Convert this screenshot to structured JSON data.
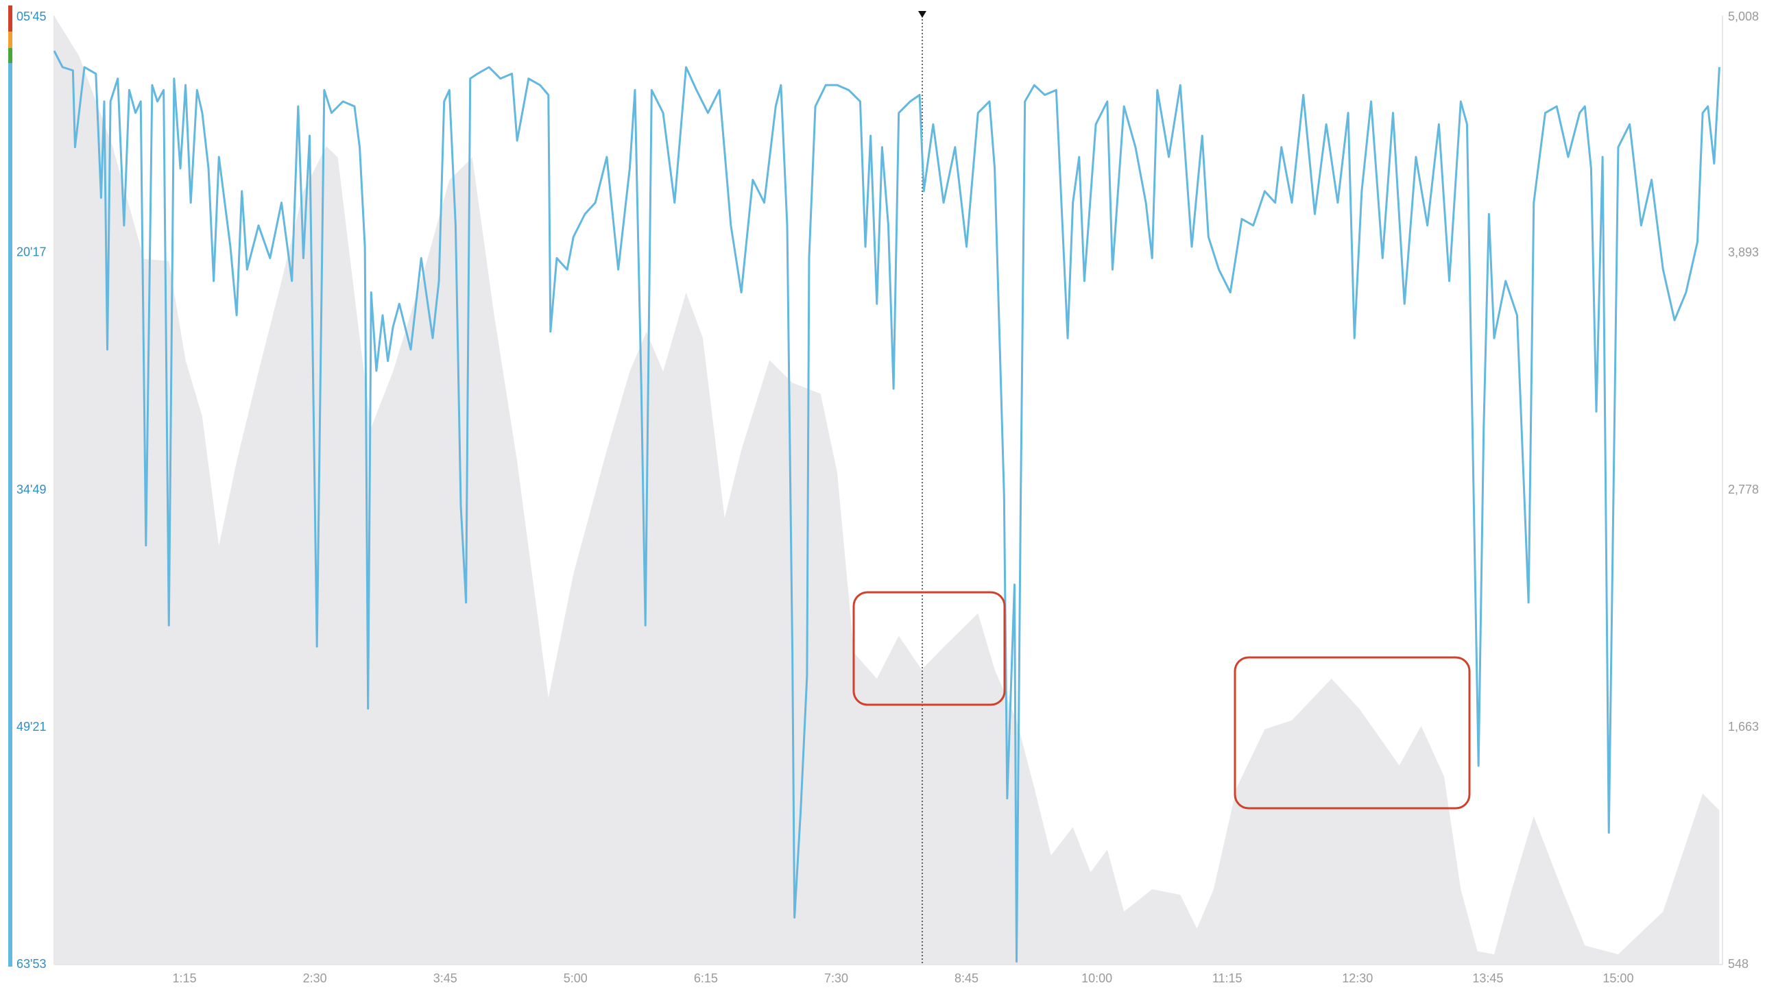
{
  "chart_data": {
    "type": "line",
    "xlim": [
      0,
      16
    ],
    "xticks": [
      {
        "value": 1.25,
        "label": "1:15"
      },
      {
        "value": 2.5,
        "label": "2:30"
      },
      {
        "value": 3.75,
        "label": "3:45"
      },
      {
        "value": 5,
        "label": "5:00"
      },
      {
        "value": 6.25,
        "label": "6:15"
      },
      {
        "value": 7.5,
        "label": "7:30"
      },
      {
        "value": 8.75,
        "label": "8:45"
      },
      {
        "value": 10,
        "label": "10:00"
      },
      {
        "value": 11.25,
        "label": "11:15"
      },
      {
        "value": 12.5,
        "label": "12:30"
      },
      {
        "value": 13.75,
        "label": "13:45"
      },
      {
        "value": 15,
        "label": "15:00"
      }
    ],
    "ylim": [
      63.883,
      5.75
    ],
    "yticks": [
      {
        "value": 5.75,
        "label": "05'45"
      },
      {
        "value": 20.283,
        "label": "20'17"
      },
      {
        "value": 34.817,
        "label": "34'49"
      },
      {
        "value": 49.35,
        "label": "49'21"
      },
      {
        "value": 63.883,
        "label": "63'53"
      }
    ],
    "y2lim": [
      548,
      5008
    ],
    "y2ticks": [
      {
        "value": 5008,
        "label": "5,008"
      },
      {
        "value": 3893,
        "label": "3,893"
      },
      {
        "value": 2778,
        "label": "2,778"
      },
      {
        "value": 1663,
        "label": "1,663"
      },
      548
    ],
    "grid": true,
    "series": [
      {
        "type": "area",
        "axis": "y2",
        "color": "#e9e9eb",
        "x": [
          0,
          0.24,
          0.56,
          0.86,
          1.1,
          1.26,
          1.42,
          1.58,
          1.75,
          1.96,
          2.18,
          2.39,
          2.61,
          2.72,
          2.93,
          3.04,
          3.25,
          3.58,
          3.79,
          4.01,
          4.22,
          4.44,
          4.74,
          4.98,
          5.3,
          5.52,
          5.68,
          5.84,
          6.06,
          6.22,
          6.43,
          6.59,
          6.86,
          7.08,
          7.35,
          7.51,
          7.67,
          7.89,
          8.1,
          8.32,
          8.53,
          8.86,
          9.02,
          9.23,
          9.4,
          9.56,
          9.77,
          9.94,
          10.1,
          10.26,
          10.53,
          10.8,
          10.96,
          11.12,
          11.34,
          11.61,
          11.87,
          12.25,
          12.52,
          12.9,
          13.11,
          13.33,
          13.49,
          13.65,
          13.81,
          13.98,
          14.19,
          14.46,
          14.68,
          15.0,
          15.43,
          15.81,
          15.97
        ],
        "values": [
          5008,
          4818,
          4395,
          3865,
          3855,
          3389,
          3124,
          2516,
          2913,
          3336,
          3760,
          4183,
          4395,
          4342,
          3495,
          3072,
          3336,
          3865,
          4236,
          4342,
          3601,
          2913,
          1802,
          2384,
          2966,
          3336,
          3522,
          3336,
          3707,
          3495,
          2648,
          2966,
          3389,
          3283,
          3231,
          2860,
          2014,
          1892,
          2093,
          1934,
          2040,
          2199,
          1934,
          1696,
          1379,
          1061,
          1194,
          982,
          1088,
          797,
          902,
          876,
          717,
          902,
          1379,
          1654,
          1696,
          1892,
          1749,
          1484,
          1670,
          1432,
          902,
          611,
          596,
          902,
          1246,
          902,
          638,
          596,
          797,
          1352,
          1273
        ]
      },
      {
        "type": "line",
        "axis": "y",
        "color": "#62b8df",
        "x": [
          0,
          0.08,
          0.18,
          0.2,
          0.29,
          0.4,
          0.45,
          0.48,
          0.51,
          0.54,
          0.61,
          0.67,
          0.72,
          0.78,
          0.83,
          0.88,
          0.94,
          0.99,
          1.05,
          1.1,
          1.15,
          1.21,
          1.26,
          1.31,
          1.37,
          1.42,
          1.48,
          1.53,
          1.58,
          1.69,
          1.75,
          1.8,
          1.85,
          1.96,
          2.07,
          2.18,
          2.28,
          2.34,
          2.39,
          2.45,
          2.52,
          2.59,
          2.66,
          2.77,
          2.88,
          2.93,
          2.98,
          3.01,
          3.04,
          3.09,
          3.15,
          3.2,
          3.25,
          3.31,
          3.42,
          3.52,
          3.63,
          3.69,
          3.74,
          3.79,
          3.85,
          3.9,
          3.95,
          3.99,
          4.06,
          4.17,
          4.28,
          4.39,
          4.44,
          4.55,
          4.66,
          4.74,
          4.76,
          4.82,
          4.92,
          4.98,
          5.09,
          5.19,
          5.3,
          5.41,
          5.52,
          5.57,
          5.63,
          5.67,
          5.73,
          5.84,
          5.95,
          6.06,
          6.16,
          6.27,
          6.38,
          6.49,
          6.59,
          6.7,
          6.81,
          6.92,
          6.97,
          7.03,
          7.08,
          7.1,
          7.16,
          7.22,
          7.24,
          7.3,
          7.4,
          7.51,
          7.62,
          7.73,
          7.78,
          7.83,
          7.89,
          7.94,
          8.0,
          8.05,
          8.1,
          8.21,
          8.3,
          8.34,
          8.43,
          8.53,
          8.64,
          8.75,
          8.86,
          8.97,
          9.02,
          9.11,
          9.14,
          9.21,
          9.23,
          9.27,
          9.31,
          9.4,
          9.5,
          9.61,
          9.67,
          9.72,
          9.77,
          9.83,
          9.88,
          9.99,
          10.1,
          10.15,
          10.26,
          10.37,
          10.47,
          10.53,
          10.58,
          10.69,
          10.8,
          10.91,
          11.01,
          11.07,
          11.17,
          11.28,
          11.39,
          11.5,
          11.61,
          11.71,
          11.77,
          11.87,
          11.98,
          12.09,
          12.2,
          12.31,
          12.41,
          12.47,
          12.54,
          12.63,
          12.74,
          12.84,
          12.95,
          13.06,
          13.17,
          13.28,
          13.38,
          13.49,
          13.55,
          13.66,
          13.71,
          13.76,
          13.81,
          13.92,
          14.03,
          14.14,
          14.19,
          14.3,
          14.41,
          14.52,
          14.63,
          14.68,
          14.74,
          14.79,
          14.85,
          14.91,
          15.0,
          15.11,
          15.22,
          15.32,
          15.43,
          15.54,
          15.65,
          15.76,
          15.81,
          15.86,
          15.92,
          15.97
        ],
        "values": [
          7.9,
          8.9,
          9.1,
          13.8,
          8.9,
          9.3,
          16.9,
          11.0,
          26.2,
          11.0,
          9.6,
          18.6,
          10.3,
          11.7,
          11.0,
          38.2,
          10.0,
          11.0,
          10.3,
          43.1,
          9.6,
          15.1,
          10.0,
          17.2,
          10.3,
          11.7,
          15.1,
          22.0,
          14.4,
          19.9,
          24.1,
          16.5,
          21.3,
          18.6,
          20.6,
          17.2,
          22.0,
          11.3,
          20.6,
          13.1,
          44.4,
          10.3,
          11.7,
          11.0,
          11.3,
          13.8,
          19.9,
          48.2,
          22.7,
          27.5,
          24.1,
          26.9,
          24.8,
          23.4,
          26.2,
          20.6,
          25.5,
          22.0,
          11.0,
          10.3,
          18.6,
          35.8,
          41.7,
          9.6,
          9.3,
          8.9,
          9.6,
          9.3,
          13.4,
          9.6,
          10.0,
          10.6,
          25.1,
          20.6,
          21.3,
          19.3,
          17.9,
          17.2,
          14.4,
          21.3,
          15.1,
          10.3,
          28.2,
          43.1,
          10.3,
          11.7,
          17.2,
          8.9,
          10.3,
          11.7,
          10.3,
          18.6,
          22.7,
          15.8,
          17.2,
          11.3,
          10.0,
          18.6,
          44.8,
          61.0,
          54.4,
          46.2,
          20.6,
          11.3,
          10.0,
          10.0,
          10.3,
          11.0,
          19.9,
          13.1,
          23.4,
          13.8,
          18.6,
          28.6,
          11.7,
          11.0,
          10.6,
          16.5,
          12.4,
          17.2,
          13.8,
          19.9,
          11.7,
          11.0,
          15.1,
          35.1,
          53.7,
          40.6,
          63.7,
          35.1,
          11.0,
          10.0,
          10.6,
          10.3,
          18.6,
          25.5,
          17.2,
          14.4,
          22.0,
          12.4,
          11.0,
          21.3,
          11.3,
          13.8,
          17.2,
          20.6,
          10.3,
          14.4,
          10.0,
          19.9,
          13.1,
          19.3,
          21.3,
          22.7,
          18.2,
          18.6,
          16.5,
          17.2,
          13.8,
          17.2,
          10.6,
          17.9,
          12.4,
          17.2,
          11.7,
          25.5,
          16.5,
          11.0,
          20.6,
          11.7,
          23.4,
          14.4,
          18.6,
          12.4,
          22.0,
          11.0,
          12.4,
          51.7,
          31.0,
          17.9,
          25.5,
          22.0,
          24.1,
          41.7,
          17.2,
          11.7,
          11.3,
          14.4,
          11.7,
          11.3,
          15.1,
          30.0,
          14.4,
          55.8,
          13.8,
          12.4,
          18.6,
          15.8,
          21.3,
          24.4,
          22.7,
          19.6,
          11.7,
          11.3,
          14.8,
          8.9
        ]
      }
    ]
  }
}
